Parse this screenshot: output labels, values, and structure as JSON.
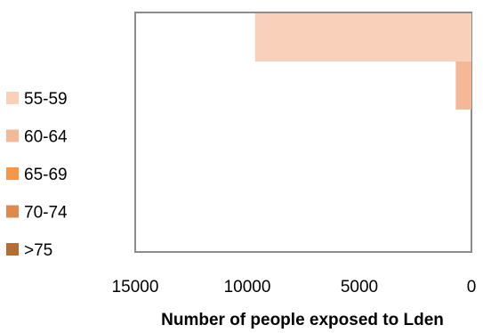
{
  "chart_data": {
    "type": "bar",
    "orientation": "horizontal",
    "x_reversed": true,
    "xlabel": "Number of people exposed to Lden",
    "ylabel": "",
    "xlim": [
      15000,
      0
    ],
    "x_ticks": [
      15000,
      10000,
      5000,
      0
    ],
    "x_tick_labels": [
      "15000",
      "10000",
      "5000",
      "0"
    ],
    "categories": [
      "55-59",
      "60-64",
      "65-69",
      "70-74",
      ">75"
    ],
    "series": [
      {
        "name": "55-59",
        "color": "#F9D0B9",
        "value": 9650
      },
      {
        "name": "60-64",
        "color": "#F5B896",
        "value": 700
      },
      {
        "name": "65-69",
        "color": "#F79646",
        "value": 0
      },
      {
        "name": "70-74",
        "color": "#DE8A4E",
        "value": 0
      },
      {
        "name": ">75",
        "color": "#B56D33",
        "value": 0
      }
    ],
    "legend_position": "left",
    "grid": false
  }
}
